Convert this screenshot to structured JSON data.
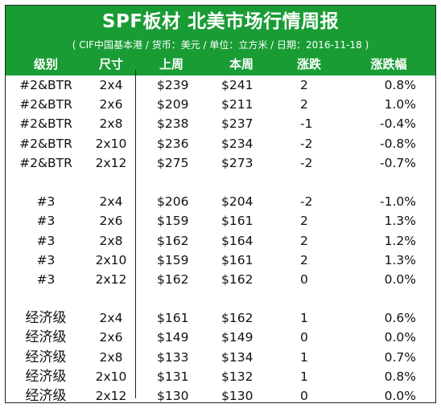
{
  "title": "SPF板材 北美市场行情周报",
  "subtitle": "( CIF中国基本港 / 货币：美元 / 单位：立方米 / 日期：2016-11-18 )",
  "columns": [
    "级别",
    "尺寸",
    "上周",
    "本周",
    "涨跌",
    "涨跌幅"
  ],
  "groups": [
    {
      "rows": [
        {
          "grade": "#2&BTR",
          "size": "2x4",
          "last": "$239",
          "this": "$241",
          "change": "2",
          "pct": "0.8%"
        },
        {
          "grade": "#2&BTR",
          "size": "2x6",
          "last": "$209",
          "this": "$211",
          "change": "2",
          "pct": "1.0%"
        },
        {
          "grade": "#2&BTR",
          "size": "2x8",
          "last": "$238",
          "this": "$237",
          "change": "-1",
          "pct": "-0.4%"
        },
        {
          "grade": "#2&BTR",
          "size": "2x10",
          "last": "$236",
          "this": "$234",
          "change": "-2",
          "pct": "-0.8%"
        },
        {
          "grade": "#2&BTR",
          "size": "2x12",
          "last": "$275",
          "this": "$273",
          "change": "-2",
          "pct": "-0.7%"
        }
      ]
    },
    {
      "rows": [
        {
          "grade": "#3",
          "size": "2x4",
          "last": "$206",
          "this": "$204",
          "change": "-2",
          "pct": "-1.0%"
        },
        {
          "grade": "#3",
          "size": "2x6",
          "last": "$159",
          "this": "$161",
          "change": "2",
          "pct": "1.3%"
        },
        {
          "grade": "#3",
          "size": "2x8",
          "last": "$162",
          "this": "$164",
          "change": "2",
          "pct": "1.2%"
        },
        {
          "grade": "#3",
          "size": "2x10",
          "last": "$159",
          "this": "$161",
          "change": "2",
          "pct": "1.3%"
        },
        {
          "grade": "#3",
          "size": "2x12",
          "last": "$162",
          "this": "$162",
          "change": "0",
          "pct": "0.0%"
        }
      ]
    },
    {
      "rows": [
        {
          "grade": "经济级",
          "size": "2x4",
          "last": "$161",
          "this": "$162",
          "change": "1",
          "pct": "0.6%"
        },
        {
          "grade": "经济级",
          "size": "2x6",
          "last": "$149",
          "this": "$149",
          "change": "0",
          "pct": "0.0%"
        },
        {
          "grade": "经济级",
          "size": "2x8",
          "last": "$133",
          "this": "$134",
          "change": "1",
          "pct": "0.7%"
        },
        {
          "grade": "经济级",
          "size": "2x10",
          "last": "$131",
          "this": "$132",
          "change": "1",
          "pct": "0.8%"
        },
        {
          "grade": "经济级",
          "size": "2x12",
          "last": "$130",
          "this": "$130",
          "change": "0",
          "pct": "0.0%"
        }
      ]
    }
  ]
}
